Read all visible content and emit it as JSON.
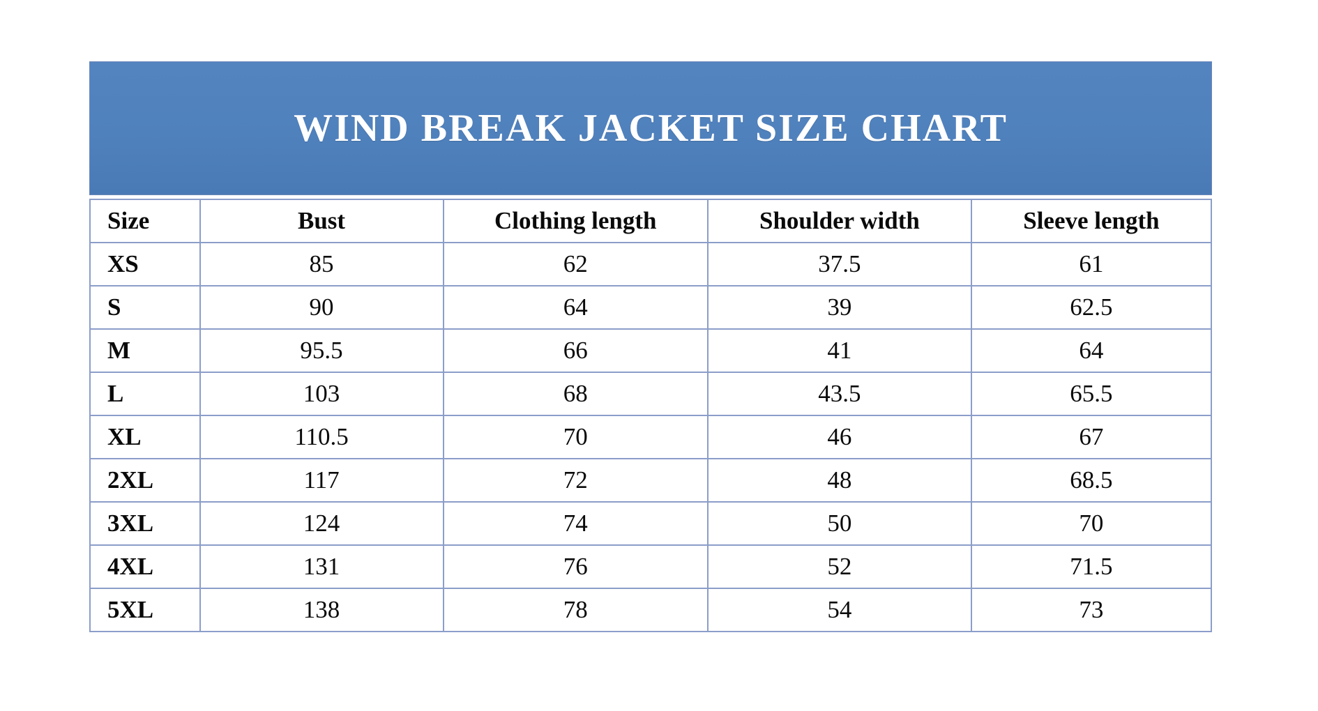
{
  "banner": {
    "title": "WIND BREAK JACKET SIZE CHART",
    "bg_color": "#4f81bd",
    "text_color": "#ffffff"
  },
  "table": {
    "border_color": "#8b9dc9",
    "columns": [
      "Size",
      "Bust",
      "Clothing length",
      "Shoulder width",
      "Sleeve length"
    ],
    "rows": [
      [
        "XS",
        "85",
        "62",
        "37.5",
        "61"
      ],
      [
        "S",
        "90",
        "64",
        "39",
        "62.5"
      ],
      [
        "M",
        "95.5",
        "66",
        "41",
        "64"
      ],
      [
        "L",
        "103",
        "68",
        "43.5",
        "65.5"
      ],
      [
        "XL",
        "110.5",
        "70",
        "46",
        "67"
      ],
      [
        "2XL",
        "117",
        "72",
        "48",
        "68.5"
      ],
      [
        "3XL",
        "124",
        "74",
        "50",
        "70"
      ],
      [
        "4XL",
        "131",
        "76",
        "52",
        "71.5"
      ],
      [
        "5XL",
        "138",
        "78",
        "54",
        "73"
      ]
    ]
  }
}
